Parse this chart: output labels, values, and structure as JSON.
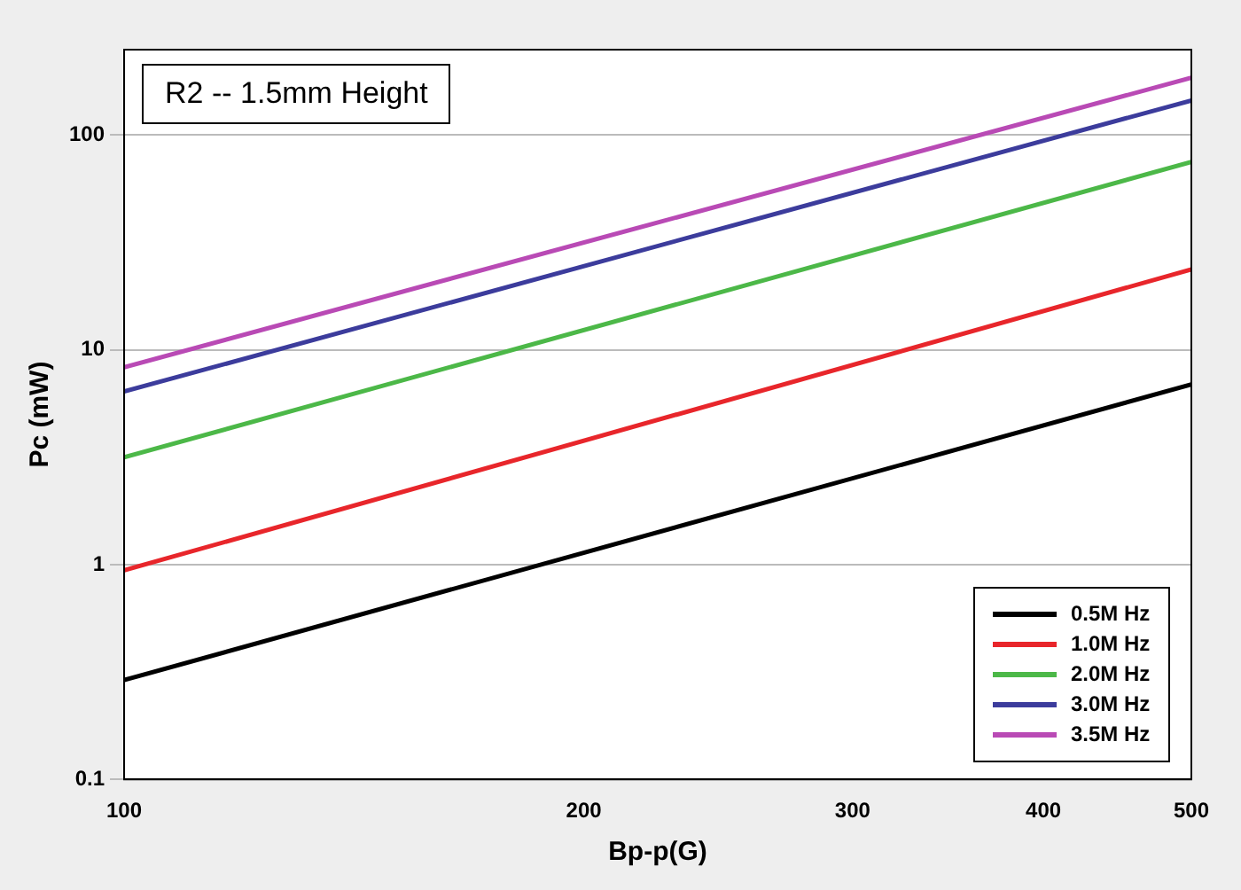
{
  "chart_data": {
    "type": "line",
    "title": "R2 -- 1.5mm Height",
    "xlabel": "Bp-p(G)",
    "ylabel": "Pc (mW)",
    "log": "xy",
    "grid": "y",
    "legend": "bottom right",
    "marker": "none",
    "line_style": "solid",
    "x": [
      100,
      500
    ],
    "xlim": [
      100,
      500
    ],
    "xticks": [
      100,
      200,
      300,
      400,
      500
    ],
    "ylim": [
      0.1,
      250
    ],
    "yticks": [
      0.1,
      1,
      10,
      100
    ],
    "series": [
      {
        "name": "0.5M Hz",
        "color": "#000000",
        "values": [
          0.29,
          6.9
        ]
      },
      {
        "name": "1.0M Hz",
        "color": "#e8262b",
        "values": [
          0.94,
          23.7
        ]
      },
      {
        "name": "2.0M Hz",
        "color": "#4cb848",
        "values": [
          3.16,
          75
        ]
      },
      {
        "name": "3.0M Hz",
        "color": "#3c3c9c",
        "values": [
          6.4,
          145
        ]
      },
      {
        "name": "3.5M Hz",
        "color": "#b94ab5",
        "values": [
          8.3,
          185
        ]
      }
    ]
  }
}
